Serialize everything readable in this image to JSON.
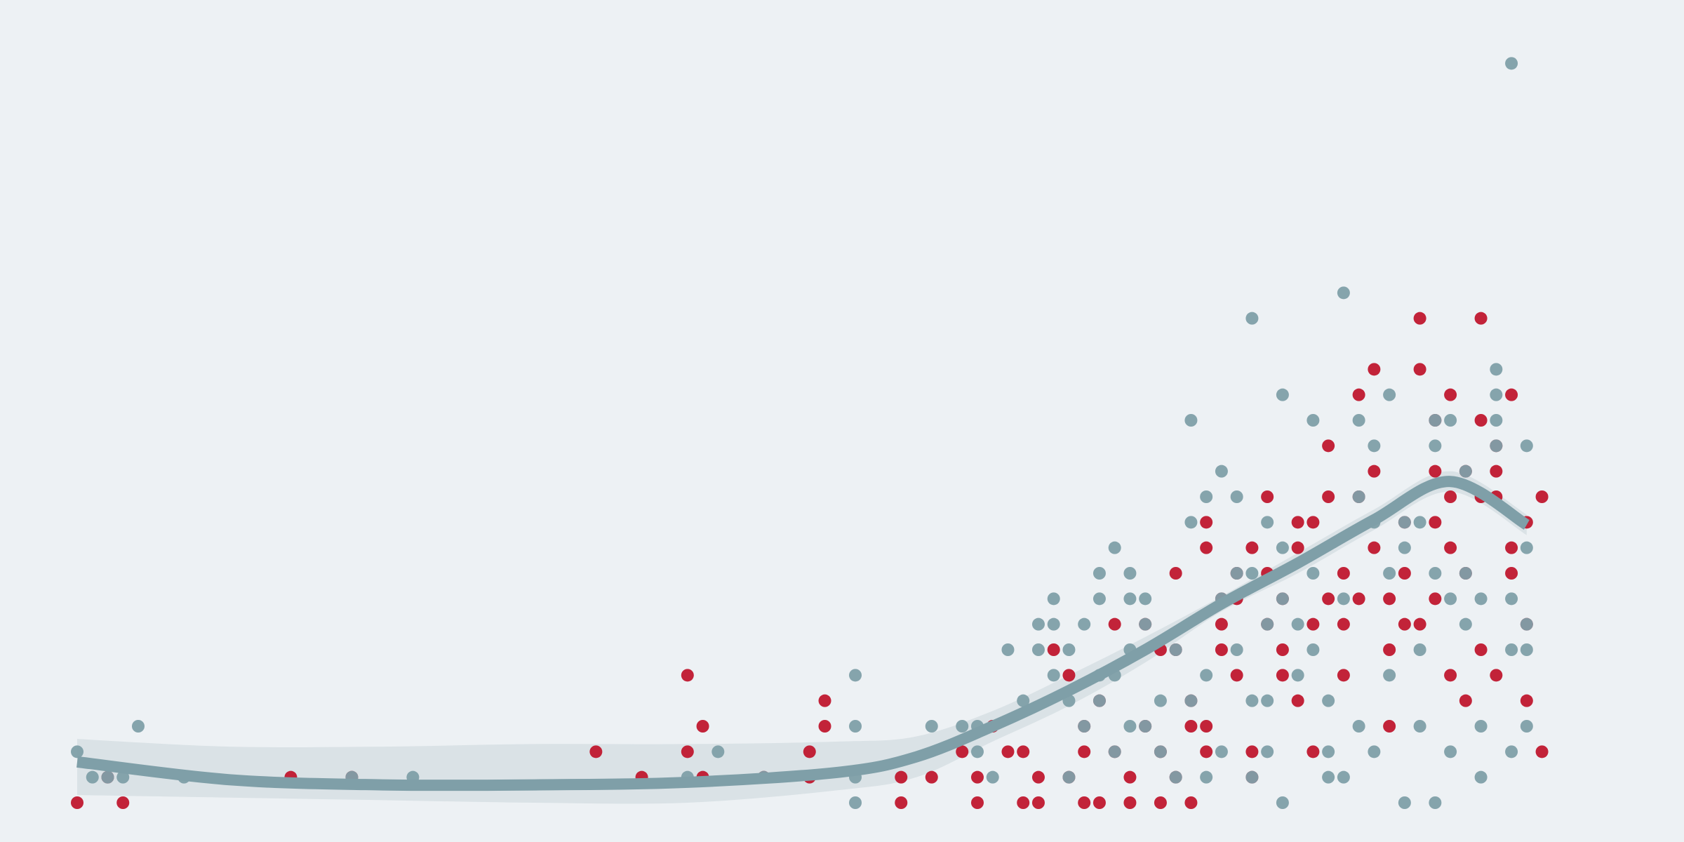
{
  "chart_data": {
    "type": "scatter",
    "title": "",
    "xlabel": "",
    "ylabel": "",
    "xlim": [
      0,
      100
    ],
    "ylim": [
      0,
      30
    ],
    "grid": false,
    "legend": "none",
    "colors": {
      "background": "#edf1f4",
      "series_a": "#c0172e",
      "series_b": "#7f9fa8",
      "trend": "#7f9fa8",
      "band": "#d6dfe3"
    },
    "series": [
      {
        "color": "#c0172e",
        "points": [
          [
            0,
            0
          ],
          [
            2,
            1
          ],
          [
            3,
            0
          ],
          [
            14,
            1
          ],
          [
            18,
            1
          ],
          [
            34,
            2
          ],
          [
            37,
            1
          ],
          [
            40,
            5
          ],
          [
            40,
            2
          ],
          [
            41,
            3
          ],
          [
            41,
            1
          ],
          [
            45,
            1
          ],
          [
            48,
            2
          ],
          [
            48,
            1
          ],
          [
            49,
            4
          ],
          [
            49,
            3
          ],
          [
            54,
            1
          ],
          [
            54,
            0
          ],
          [
            56,
            1
          ],
          [
            58,
            2
          ],
          [
            59,
            1
          ],
          [
            59,
            0
          ],
          [
            60,
            3
          ],
          [
            61,
            2
          ],
          [
            62,
            0
          ],
          [
            62,
            2
          ],
          [
            63,
            1
          ],
          [
            63,
            0
          ],
          [
            64,
            6
          ],
          [
            65,
            1
          ],
          [
            65,
            5
          ],
          [
            66,
            3
          ],
          [
            66,
            2
          ],
          [
            66,
            0
          ],
          [
            67,
            0
          ],
          [
            67,
            4
          ],
          [
            68,
            7
          ],
          [
            68,
            2
          ],
          [
            69,
            1
          ],
          [
            69,
            0
          ],
          [
            70,
            7
          ],
          [
            70,
            3
          ],
          [
            71,
            6
          ],
          [
            71,
            2
          ],
          [
            71,
            0
          ],
          [
            72,
            1
          ],
          [
            72,
            9
          ],
          [
            72,
            6
          ],
          [
            73,
            4
          ],
          [
            73,
            3
          ],
          [
            73,
            0
          ],
          [
            74,
            2
          ],
          [
            74,
            11
          ],
          [
            74,
            10
          ],
          [
            74,
            3
          ],
          [
            75,
            7
          ],
          [
            75,
            8
          ],
          [
            75,
            6
          ],
          [
            76,
            9
          ],
          [
            76,
            8
          ],
          [
            76,
            5
          ],
          [
            77,
            10
          ],
          [
            77,
            2
          ],
          [
            77,
            1
          ],
          [
            78,
            12
          ],
          [
            78,
            9
          ],
          [
            78,
            7
          ],
          [
            79,
            8
          ],
          [
            79,
            6
          ],
          [
            79,
            5
          ],
          [
            80,
            4
          ],
          [
            80,
            11
          ],
          [
            80,
            10
          ],
          [
            81,
            11
          ],
          [
            81,
            7
          ],
          [
            81,
            2
          ],
          [
            82,
            14
          ],
          [
            82,
            8
          ],
          [
            82,
            12
          ],
          [
            83,
            9
          ],
          [
            83,
            7
          ],
          [
            83,
            5
          ],
          [
            84,
            12
          ],
          [
            84,
            16
          ],
          [
            84,
            8
          ],
          [
            85,
            17
          ],
          [
            85,
            13
          ],
          [
            85,
            10
          ],
          [
            86,
            3
          ],
          [
            86,
            6
          ],
          [
            86,
            8
          ],
          [
            87,
            7
          ],
          [
            87,
            9
          ],
          [
            87,
            11
          ],
          [
            88,
            17
          ],
          [
            88,
            7
          ],
          [
            88,
            19
          ],
          [
            89,
            15
          ],
          [
            89,
            8
          ],
          [
            89,
            13
          ],
          [
            89,
            11
          ],
          [
            90,
            10
          ],
          [
            90,
            5
          ],
          [
            90,
            12
          ],
          [
            90,
            16
          ],
          [
            91,
            13
          ],
          [
            91,
            9
          ],
          [
            91,
            4
          ],
          [
            92,
            12
          ],
          [
            92,
            19
          ],
          [
            92,
            6
          ],
          [
            92,
            15
          ],
          [
            93,
            12
          ],
          [
            93,
            14
          ],
          [
            93,
            13
          ],
          [
            93,
            5
          ],
          [
            94,
            10
          ],
          [
            94,
            16
          ],
          [
            94,
            9
          ],
          [
            95,
            11
          ],
          [
            95,
            4
          ],
          [
            95,
            7
          ],
          [
            96,
            12
          ],
          [
            96,
            2
          ]
        ]
      },
      {
        "color": "#7f9fa8",
        "points": [
          [
            0,
            2
          ],
          [
            1,
            1
          ],
          [
            2,
            1
          ],
          [
            3,
            1
          ],
          [
            4,
            3
          ],
          [
            7,
            1
          ],
          [
            18,
            1
          ],
          [
            22,
            1
          ],
          [
            40,
            1
          ],
          [
            42,
            2
          ],
          [
            45,
            1
          ],
          [
            51,
            5
          ],
          [
            51,
            3
          ],
          [
            51,
            1
          ],
          [
            51,
            0
          ],
          [
            56,
            3
          ],
          [
            58,
            3
          ],
          [
            59,
            3
          ],
          [
            59,
            2
          ],
          [
            60,
            1
          ],
          [
            61,
            6
          ],
          [
            62,
            4
          ],
          [
            63,
            7
          ],
          [
            63,
            6
          ],
          [
            64,
            8
          ],
          [
            64,
            7
          ],
          [
            64,
            5
          ],
          [
            65,
            6
          ],
          [
            65,
            4
          ],
          [
            65,
            1
          ],
          [
            66,
            7
          ],
          [
            66,
            3
          ],
          [
            67,
            9
          ],
          [
            67,
            8
          ],
          [
            67,
            5
          ],
          [
            67,
            4
          ],
          [
            68,
            10
          ],
          [
            68,
            5
          ],
          [
            68,
            2
          ],
          [
            69,
            9
          ],
          [
            69,
            8
          ],
          [
            69,
            6
          ],
          [
            69,
            3
          ],
          [
            70,
            8
          ],
          [
            70,
            7
          ],
          [
            70,
            3
          ],
          [
            71,
            4
          ],
          [
            71,
            2
          ],
          [
            72,
            6
          ],
          [
            72,
            1
          ],
          [
            73,
            15
          ],
          [
            73,
            11
          ],
          [
            73,
            4
          ],
          [
            74,
            12
          ],
          [
            74,
            5
          ],
          [
            74,
            1
          ],
          [
            75,
            13
          ],
          [
            75,
            8
          ],
          [
            75,
            2
          ],
          [
            76,
            12
          ],
          [
            76,
            9
          ],
          [
            76,
            6
          ],
          [
            77,
            19
          ],
          [
            77,
            9
          ],
          [
            77,
            4
          ],
          [
            77,
            1
          ],
          [
            78,
            11
          ],
          [
            78,
            7
          ],
          [
            78,
            4
          ],
          [
            78,
            2
          ],
          [
            79,
            16
          ],
          [
            79,
            10
          ],
          [
            79,
            8
          ],
          [
            79,
            0
          ],
          [
            80,
            7
          ],
          [
            80,
            5
          ],
          [
            81,
            15
          ],
          [
            81,
            9
          ],
          [
            81,
            6
          ],
          [
            82,
            4
          ],
          [
            82,
            1
          ],
          [
            82,
            2
          ],
          [
            83,
            20
          ],
          [
            83,
            8
          ],
          [
            83,
            1
          ],
          [
            84,
            15
          ],
          [
            84,
            12
          ],
          [
            84,
            3
          ],
          [
            85,
            14
          ],
          [
            85,
            11
          ],
          [
            85,
            2
          ],
          [
            86,
            16
          ],
          [
            86,
            9
          ],
          [
            86,
            5
          ],
          [
            87,
            11
          ],
          [
            87,
            10
          ],
          [
            87,
            0
          ],
          [
            88,
            11
          ],
          [
            88,
            6
          ],
          [
            88,
            3
          ],
          [
            89,
            15
          ],
          [
            89,
            14
          ],
          [
            89,
            9
          ],
          [
            89,
            0
          ],
          [
            90,
            8
          ],
          [
            90,
            2
          ],
          [
            90,
            15
          ],
          [
            91,
            13
          ],
          [
            91,
            9
          ],
          [
            91,
            7
          ],
          [
            92,
            8
          ],
          [
            92,
            1
          ],
          [
            92,
            3
          ],
          [
            93,
            17
          ],
          [
            93,
            16
          ],
          [
            93,
            15
          ],
          [
            93,
            14
          ],
          [
            94,
            8
          ],
          [
            94,
            6
          ],
          [
            94,
            2
          ],
          [
            94,
            29
          ],
          [
            95,
            14
          ],
          [
            95,
            10
          ],
          [
            95,
            7
          ],
          [
            95,
            6
          ],
          [
            95,
            3
          ]
        ]
      }
    ],
    "trend": {
      "x": [
        0,
        10,
        20,
        30,
        40,
        50,
        55,
        60,
        65,
        70,
        75,
        80,
        85,
        90,
        95
      ],
      "y": [
        1.6,
        0.9,
        0.7,
        0.7,
        0.8,
        1.2,
        1.8,
        3.0,
        4.4,
        6.0,
        7.8,
        9.4,
        11.1,
        12.6,
        10.9
      ],
      "ci_low": [
        0.3,
        0.2,
        0.1,
        0.0,
        0.0,
        0.5,
        1.0,
        2.4,
        3.8,
        5.5,
        7.5,
        9.0,
        10.7,
        12.2,
        10.5
      ],
      "ci_high": [
        2.5,
        2.2,
        2.2,
        2.3,
        2.3,
        2.4,
        2.6,
        3.6,
        5.0,
        6.5,
        8.1,
        9.8,
        11.5,
        13.0,
        11.3
      ]
    }
  }
}
